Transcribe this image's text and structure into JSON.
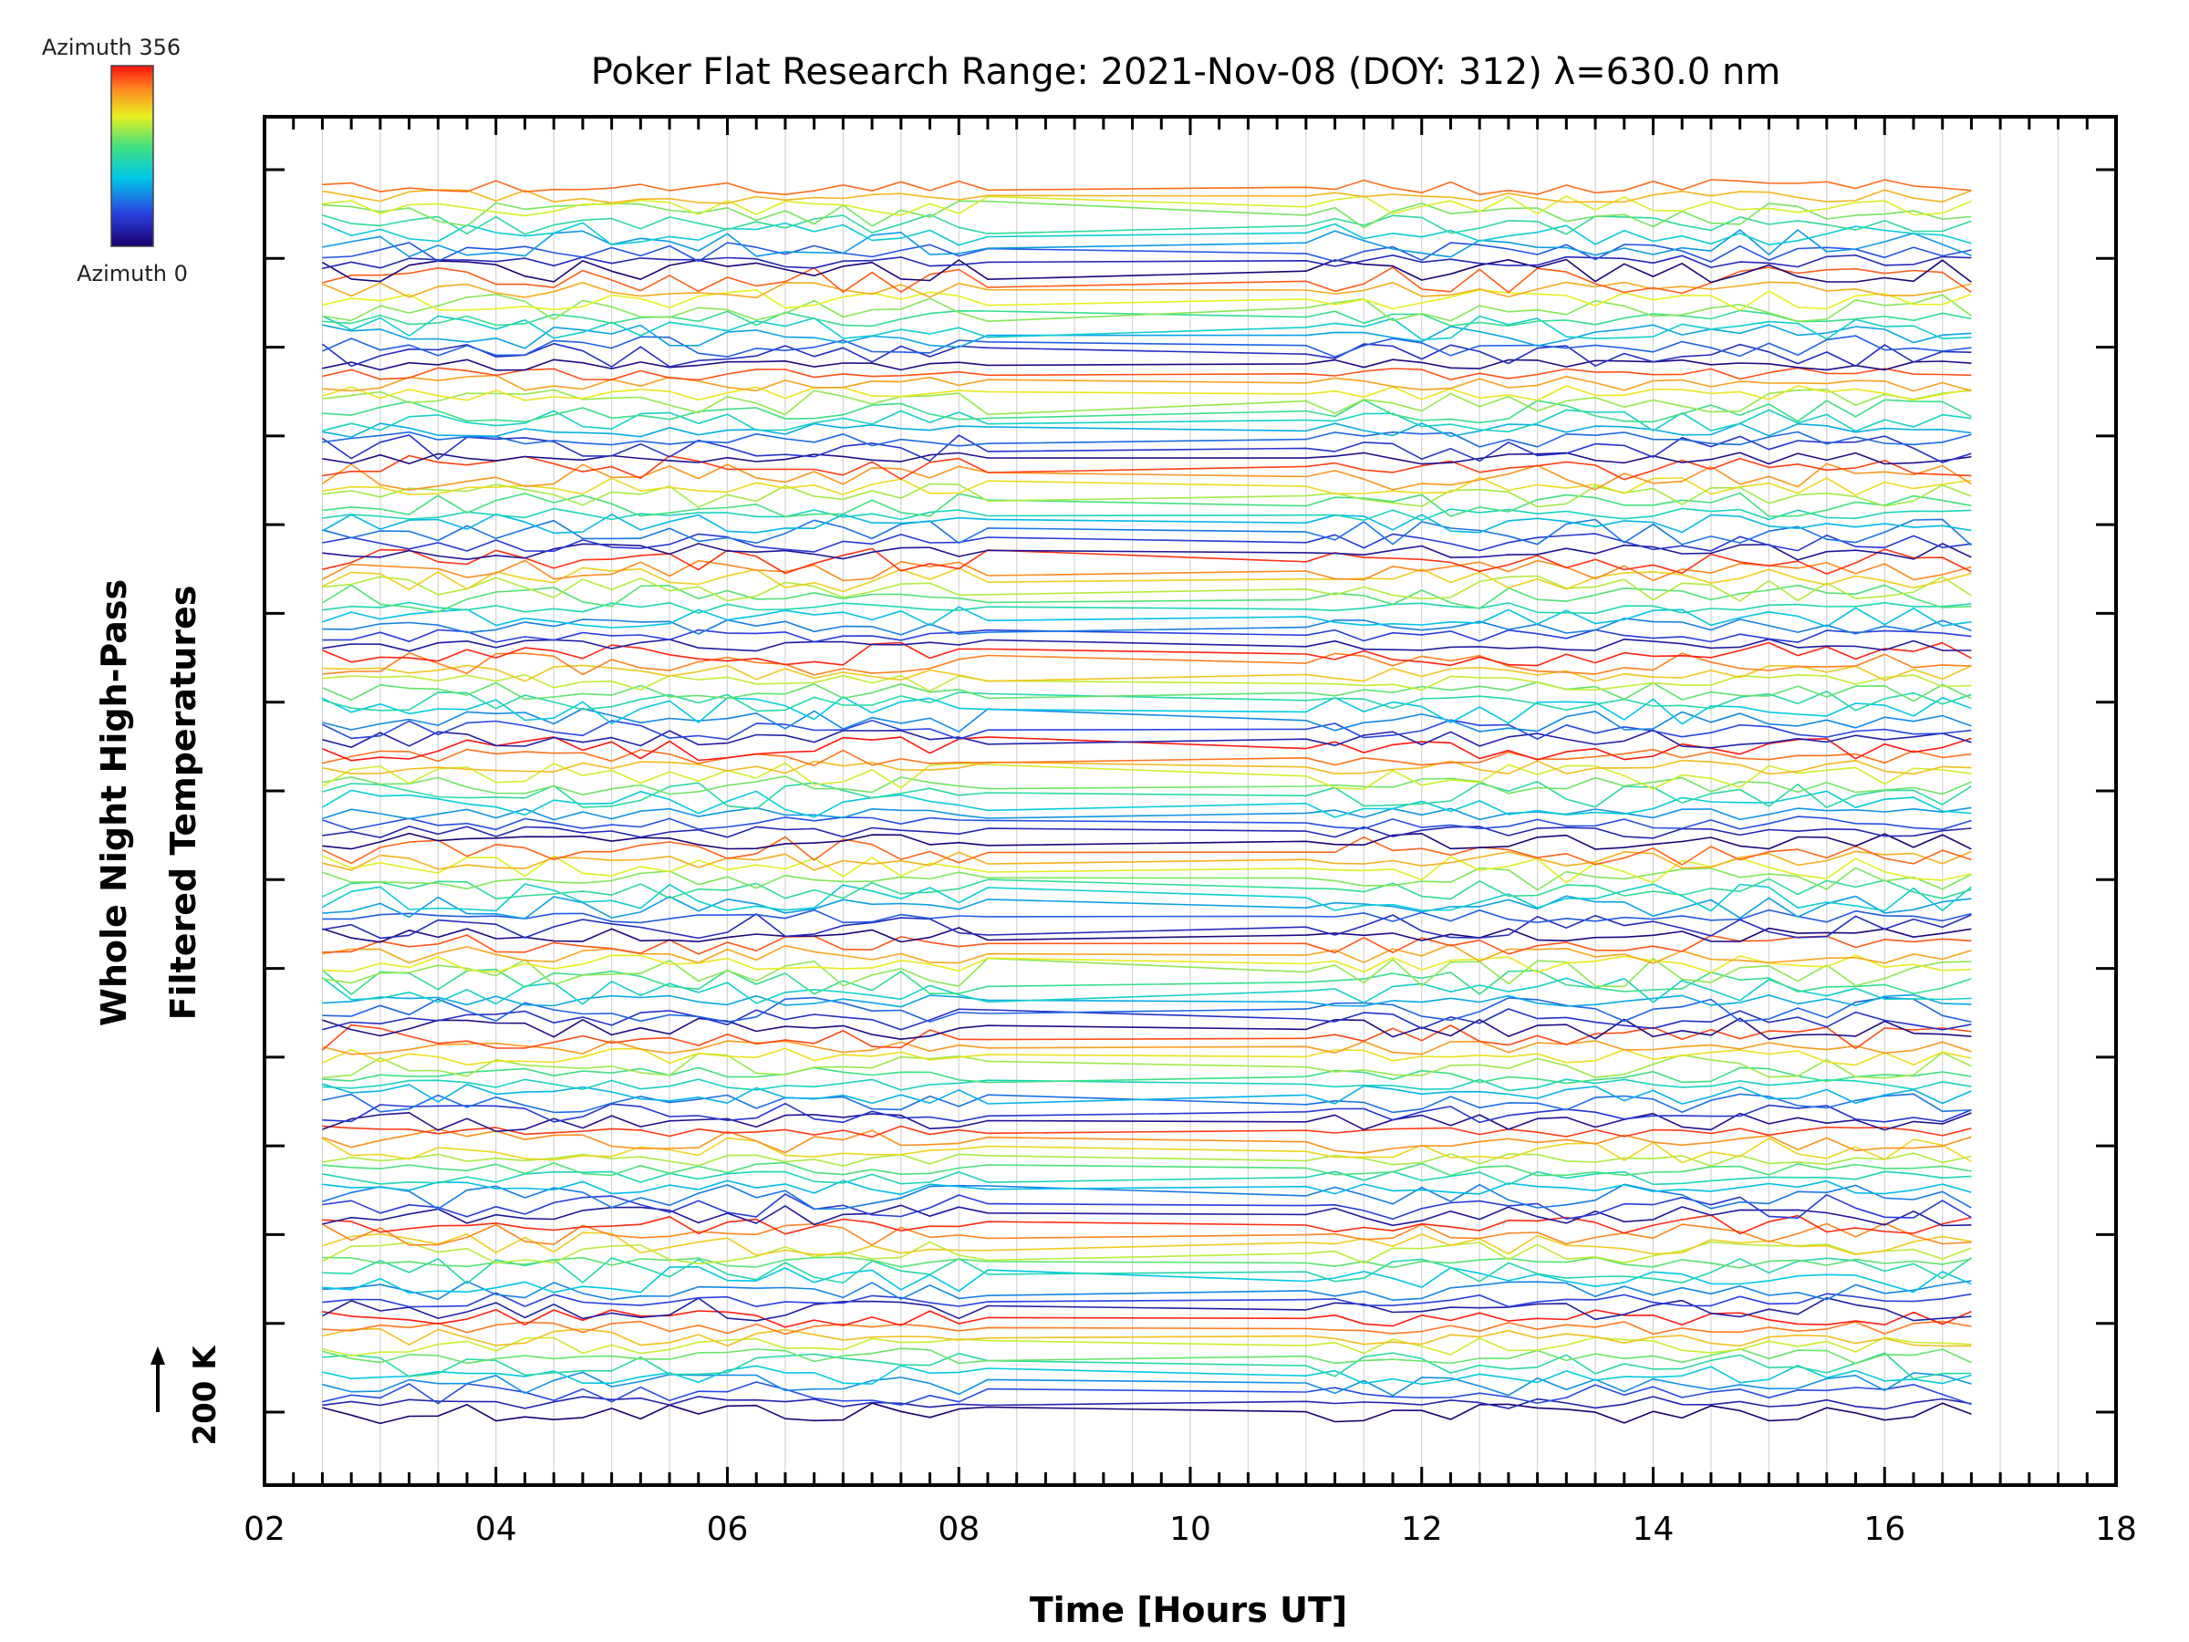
{
  "chart_data": {
    "type": "line",
    "title": "Poker Flat Research Range: 2021-Nov-08 (DOY: 312) λ=630.0 nm",
    "xlabel": "Time [Hours UT]",
    "ylabel_line1": "Whole Night High-Pass",
    "ylabel_line2": "Filtered Temperatures",
    "scale_label": "200 K",
    "colorbar": {
      "top_label": "Azimuth 356",
      "bottom_label": "Azimuth 0",
      "stops": [
        "#1a0070",
        "#2a40e0",
        "#00c8e8",
        "#40e080",
        "#e8f020",
        "#ff8020",
        "#ff1010"
      ]
    },
    "xlim": [
      2,
      18
    ],
    "x_ticks": [
      "02",
      "04",
      "06",
      "08",
      "10",
      "12",
      "14",
      "16",
      "18"
    ],
    "grid": true,
    "series_count": 132,
    "group_count": 13,
    "data_start_hour": 2.5,
    "data_end_hour": 16.75,
    "gap_hours": [
      8.4,
      11.0
    ]
  }
}
